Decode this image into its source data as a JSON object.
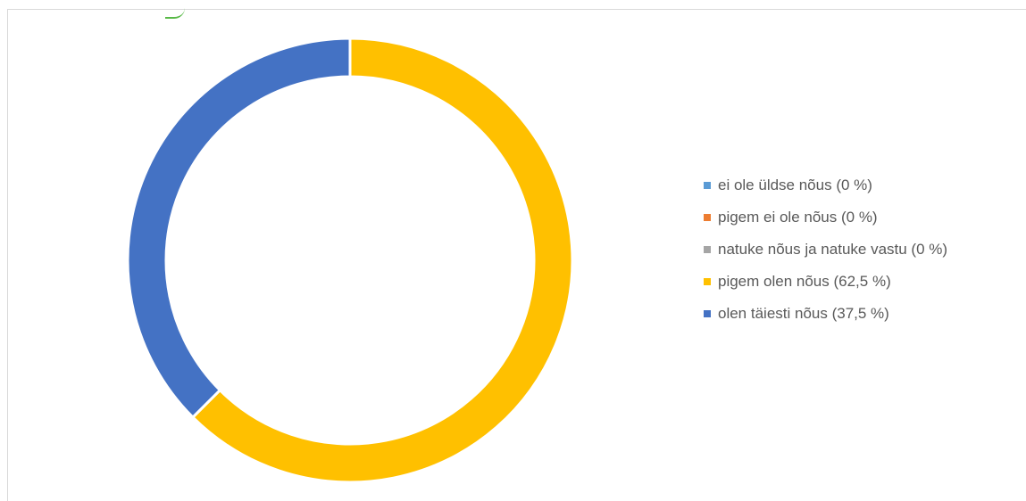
{
  "chart_data": {
    "type": "pie",
    "donut": true,
    "legend_position": "right",
    "series": [
      {
        "name": "ei ole üldse nõus (0 %)",
        "value": 0,
        "color": "#5b9bd5"
      },
      {
        "name": "pigem ei ole nõus (0 %)",
        "value": 0,
        "color": "#ed7d31"
      },
      {
        "name": "natuke nõus ja natuke vastu (0 %)",
        "value": 0,
        "color": "#a5a5a5"
      },
      {
        "name": "pigem olen nõus (62,5 %)",
        "value": 62.5,
        "color": "#ffc000"
      },
      {
        "name": "olen täiesti nõus (37,5 %)",
        "value": 37.5,
        "color": "#4472c4"
      }
    ]
  }
}
